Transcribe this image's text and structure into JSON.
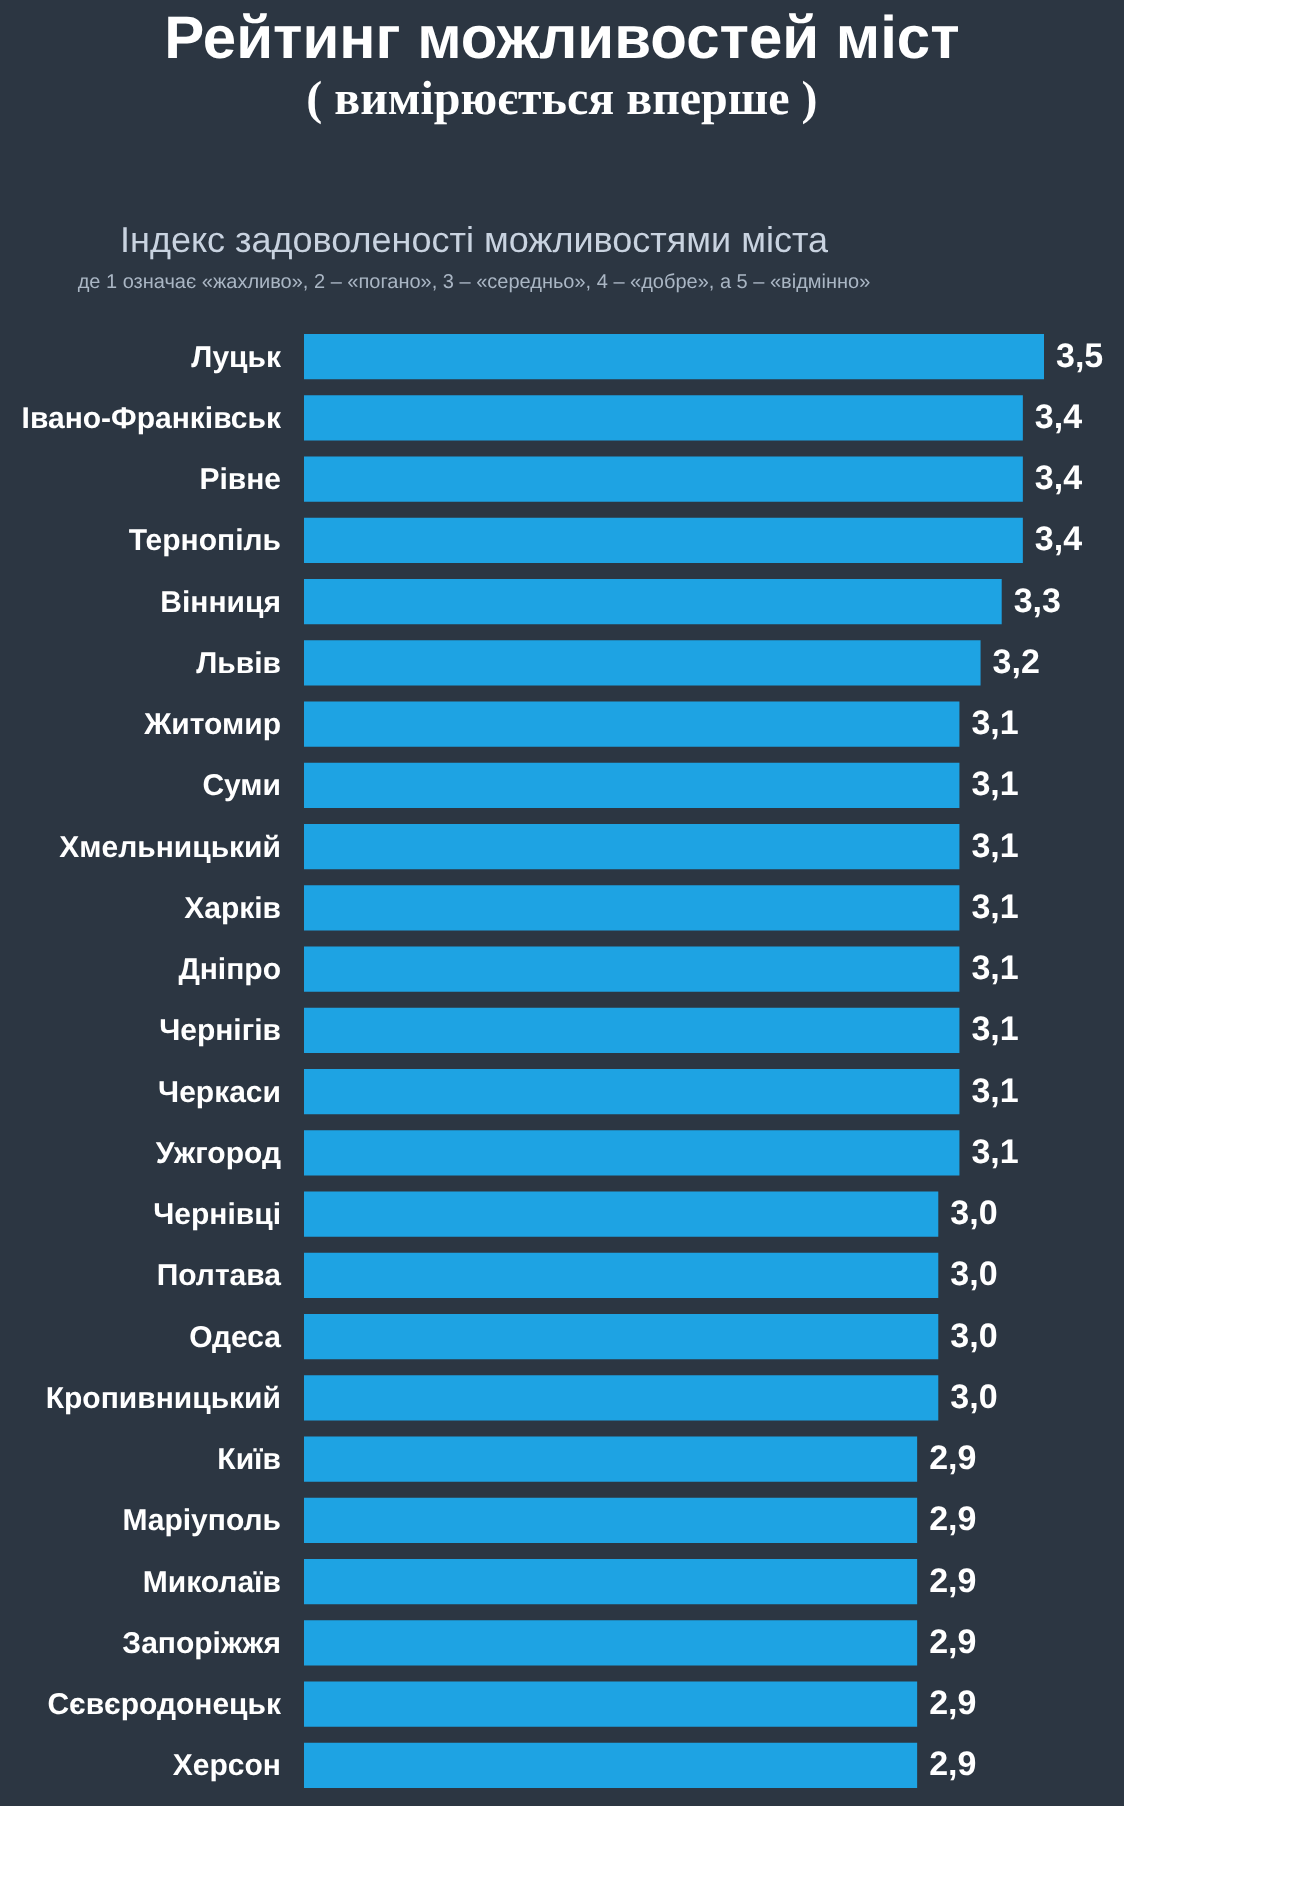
{
  "chart_data": {
    "type": "bar",
    "orientation": "horizontal",
    "title": "Рейтинг можливостей міст",
    "subtitle": "( вимірюється  вперше )",
    "annotations": [
      "Індекс задоволеності можливостями міста",
      "де 1 означає «жахливо», 2 – «погано», 3 – «середньо», 4 – «добре», а 5 – «відмінно»"
    ],
    "categories": [
      "Луцьк",
      "Івано-Франківськ",
      "Рівне",
      "Тернопіль",
      "Вінниця",
      "Львів",
      "Житомир",
      "Суми",
      "Хмельницький",
      "Харків",
      "Дніпро",
      "Чернігів",
      "Черкаси",
      "Ужгород",
      "Чернівці",
      "Полтава",
      "Одеса",
      "Кропивницький",
      "Київ",
      "Маріуполь",
      "Миколаїв",
      "Запоріжжя",
      "Сєвєродонецьк",
      "Херсон"
    ],
    "values": [
      3.5,
      3.4,
      3.4,
      3.4,
      3.3,
      3.2,
      3.1,
      3.1,
      3.1,
      3.1,
      3.1,
      3.1,
      3.1,
      3.1,
      3.0,
      3.0,
      3.0,
      3.0,
      2.9,
      2.9,
      2.9,
      2.9,
      2.9,
      2.9
    ],
    "value_labels": [
      "3,5",
      "3,4",
      "3,4",
      "3,4",
      "3,3",
      "3,2",
      "3,1",
      "3,1",
      "3,1",
      "3,1",
      "3,1",
      "3,1",
      "3,1",
      "3,1",
      "3,0",
      "3,0",
      "3,0",
      "3,0",
      "2,9",
      "2,9",
      "2,9",
      "2,9",
      "2,9",
      "2,9"
    ],
    "color": "#1ea3e3",
    "tick_labels": "y",
    "grid": false
  }
}
